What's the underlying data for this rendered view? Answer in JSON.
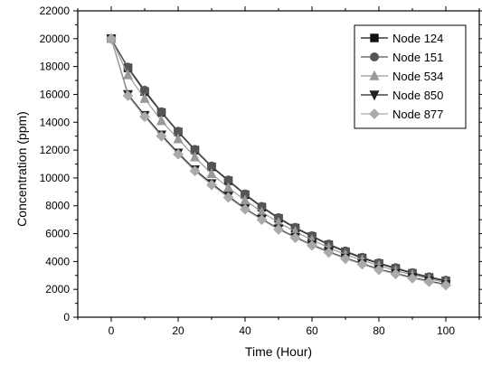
{
  "chart_data": {
    "type": "line",
    "xlabel": "Time (Hour)",
    "ylabel": "Concentration (ppm)",
    "xlim": [
      -10,
      110
    ],
    "ylim": [
      0,
      22000
    ],
    "x_ticks": [
      0,
      20,
      40,
      60,
      80,
      100
    ],
    "y_ticks": [
      0,
      2000,
      4000,
      6000,
      8000,
      10000,
      12000,
      14000,
      16000,
      18000,
      20000,
      22000
    ],
    "grid": false,
    "legend_position": "top-right",
    "x": [
      0,
      5,
      10,
      15,
      20,
      25,
      30,
      35,
      40,
      45,
      50,
      55,
      60,
      65,
      70,
      75,
      80,
      85,
      90,
      95,
      100
    ],
    "series": [
      {
        "name": "Node 124",
        "marker": "square",
        "color": "#111111",
        "values": [
          20000,
          17900,
          16200,
          14700,
          13300,
          12000,
          10800,
          9800,
          8800,
          7900,
          7100,
          6400,
          5800,
          5200,
          4700,
          4250,
          3850,
          3500,
          3150,
          2850,
          2600
        ]
      },
      {
        "name": "Node 151",
        "marker": "circle",
        "color": "#555555",
        "values": [
          20000,
          17950,
          16300,
          14750,
          13350,
          12050,
          10850,
          9850,
          8850,
          7950,
          7150,
          6450,
          5850,
          5250,
          4750,
          4300,
          3900,
          3550,
          3200,
          2900,
          2650
        ]
      },
      {
        "name": "Node 534",
        "marker": "triangle-up",
        "color": "#999999",
        "values": [
          20000,
          17400,
          15700,
          14100,
          12800,
          11500,
          10300,
          9300,
          8400,
          7550,
          6800,
          6150,
          5550,
          5000,
          4500,
          4100,
          3700,
          3350,
          3050,
          2750,
          2500
        ]
      },
      {
        "name": "Node 850",
        "marker": "triangle-down",
        "color": "#222222",
        "values": [
          20000,
          16000,
          14500,
          13100,
          11800,
          10600,
          9600,
          8700,
          7800,
          7050,
          6350,
          5750,
          5200,
          4700,
          4250,
          3850,
          3450,
          3150,
          2850,
          2600,
          2350
        ]
      },
      {
        "name": "Node 877",
        "marker": "diamond",
        "color": "#aaaaaa",
        "values": [
          20000,
          15900,
          14400,
          13000,
          11700,
          10500,
          9500,
          8600,
          7750,
          7000,
          6300,
          5700,
          5150,
          4650,
          4200,
          3800,
          3400,
          3100,
          2800,
          2550,
          2300
        ]
      }
    ]
  }
}
